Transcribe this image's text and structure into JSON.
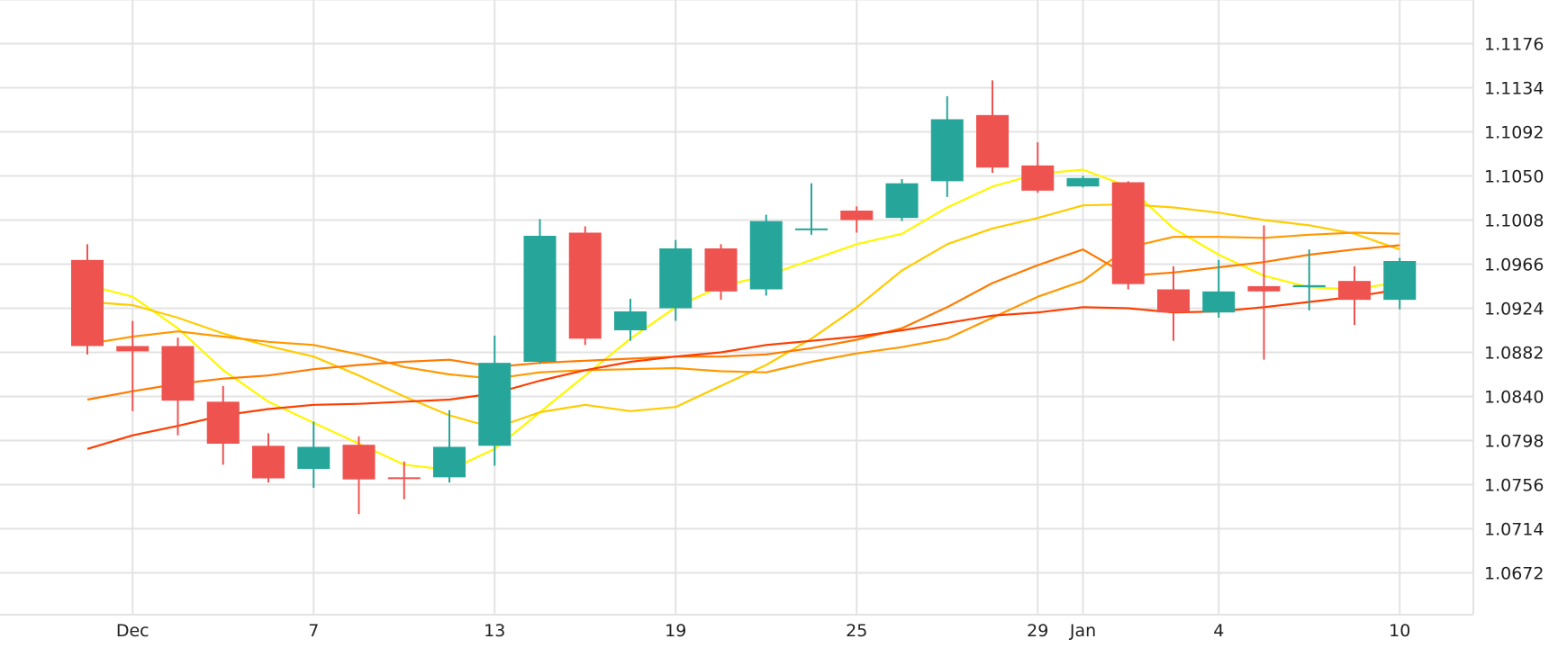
{
  "chart_data": {
    "type": "candlestick",
    "title": "",
    "xlabel": "",
    "ylabel": "",
    "ylim": [
      1.063,
      1.1218
    ],
    "grid": true,
    "y_ticks": [
      "1.1176",
      "1.1134",
      "1.1092",
      "1.1050",
      "1.1008",
      "1.0966",
      "1.0924",
      "1.0882",
      "1.0840",
      "1.0798",
      "1.0756",
      "1.0714",
      "1.0672"
    ],
    "x_ticks": [
      {
        "label": "Dec",
        "index": 1
      },
      {
        "label": "7",
        "index": 5
      },
      {
        "label": "13",
        "index": 9
      },
      {
        "label": "19",
        "index": 13
      },
      {
        "label": "25",
        "index": 17
      },
      {
        "label": "29",
        "index": 21
      },
      {
        "label": "Jan",
        "index": 22
      },
      {
        "label": "4",
        "index": 25
      },
      {
        "label": "10",
        "index": 29
      }
    ],
    "colors": {
      "up": "#26a69a",
      "down": "#ef5350",
      "grid": "#e3e3e3",
      "text": "#1f1f1f"
    },
    "candles": [
      {
        "o": 1.097,
        "h": 1.0985,
        "l": 1.088,
        "c": 1.0888
      },
      {
        "o": 1.0888,
        "h": 1.0912,
        "l": 1.0826,
        "c": 1.0883
      },
      {
        "o": 1.0888,
        "h": 1.0896,
        "l": 1.0803,
        "c": 1.0836
      },
      {
        "o": 1.0835,
        "h": 1.085,
        "l": 1.0775,
        "c": 1.0795
      },
      {
        "o": 1.0793,
        "h": 1.0805,
        "l": 1.0758,
        "c": 1.0762
      },
      {
        "o": 1.0771,
        "h": 1.0816,
        "l": 1.0753,
        "c": 1.0792
      },
      {
        "o": 1.0794,
        "h": 1.0802,
        "l": 1.0728,
        "c": 1.0761
      },
      {
        "o": 1.0763,
        "h": 1.0778,
        "l": 1.0742,
        "c": 1.0762
      },
      {
        "o": 1.0763,
        "h": 1.0827,
        "l": 1.0758,
        "c": 1.0792
      },
      {
        "o": 1.0793,
        "h": 1.0898,
        "l": 1.0774,
        "c": 1.0872
      },
      {
        "o": 1.0873,
        "h": 1.1009,
        "l": 1.0871,
        "c": 1.0993
      },
      {
        "o": 1.0996,
        "h": 1.1002,
        "l": 1.0889,
        "c": 1.0895
      },
      {
        "o": 1.0903,
        "h": 1.0933,
        "l": 1.0893,
        "c": 1.0921
      },
      {
        "o": 1.0924,
        "h": 1.0989,
        "l": 1.0912,
        "c": 1.0981
      },
      {
        "o": 1.0981,
        "h": 1.0985,
        "l": 1.0932,
        "c": 1.094
      },
      {
        "o": 1.0942,
        "h": 1.1013,
        "l": 1.0936,
        "c": 1.1007
      },
      {
        "o": 1.1,
        "h": 1.1043,
        "l": 1.0994,
        "c": 1.1
      },
      {
        "o": 1.1017,
        "h": 1.1021,
        "l": 1.0996,
        "c": 1.1008
      },
      {
        "o": 1.101,
        "h": 1.1047,
        "l": 1.1007,
        "c": 1.1043
      },
      {
        "o": 1.1045,
        "h": 1.1126,
        "l": 1.103,
        "c": 1.1104
      },
      {
        "o": 1.1108,
        "h": 1.1141,
        "l": 1.1053,
        "c": 1.1058
      },
      {
        "o": 1.106,
        "h": 1.1082,
        "l": 1.1034,
        "c": 1.1036
      },
      {
        "o": 1.104,
        "h": 1.105,
        "l": 1.1039,
        "c": 1.1048
      },
      {
        "o": 1.1044,
        "h": 1.1045,
        "l": 1.0942,
        "c": 1.0947
      },
      {
        "o": 1.0942,
        "h": 1.0964,
        "l": 1.0893,
        "c": 1.092
      },
      {
        "o": 1.092,
        "h": 1.097,
        "l": 1.0915,
        "c": 1.094
      },
      {
        "o": 1.0945,
        "h": 1.1003,
        "l": 1.0875,
        "c": 1.094
      },
      {
        "o": 1.0944,
        "h": 1.098,
        "l": 1.0922,
        "c": 1.0946
      },
      {
        "o": 1.095,
        "h": 1.0964,
        "l": 1.0908,
        "c": 1.0932
      },
      {
        "o": 1.0932,
        "h": 1.0972,
        "l": 1.0923,
        "c": 1.0969
      }
    ],
    "moving_averages": [
      {
        "color": "#fff700",
        "values": [
          1.0946,
          1.0935,
          1.0905,
          1.0865,
          1.0835,
          1.0815,
          1.0795,
          1.0775,
          1.077,
          1.079,
          1.0825,
          1.086,
          1.0895,
          1.0925,
          1.0945,
          1.0955,
          1.097,
          1.0985,
          1.0995,
          1.102,
          1.104,
          1.1052,
          1.1056,
          1.104,
          1.1,
          1.0975,
          1.0955,
          1.0944,
          1.0942,
          1.0949
        ]
      },
      {
        "color": "#ffcc00",
        "values": [
          1.093,
          1.0927,
          1.0915,
          1.09,
          1.0888,
          1.0878,
          1.086,
          1.084,
          1.0822,
          1.081,
          1.0825,
          1.0832,
          1.0826,
          1.083,
          1.085,
          1.087,
          1.0895,
          1.0925,
          1.096,
          1.0985,
          1.1,
          1.101,
          1.1022,
          1.1023,
          1.102,
          1.1015,
          1.1008,
          1.1003,
          1.0995,
          1.098
        ]
      },
      {
        "color": "#ff9900",
        "values": [
          1.089,
          1.0897,
          1.0902,
          1.0897,
          1.0892,
          1.0889,
          1.088,
          1.0868,
          1.0861,
          1.0857,
          1.0863,
          1.0865,
          1.0866,
          1.0867,
          1.0864,
          1.0863,
          1.0873,
          1.0881,
          1.0887,
          1.0895,
          1.0915,
          1.0935,
          1.095,
          1.0982,
          1.0992,
          1.0992,
          1.0991,
          1.0994,
          1.0996,
          1.0995
        ]
      },
      {
        "color": "#ff7a00",
        "values": [
          1.0837,
          1.0845,
          1.0852,
          1.0857,
          1.086,
          1.0866,
          1.087,
          1.0873,
          1.0875,
          1.0868,
          1.0872,
          1.0874,
          1.0876,
          1.0878,
          1.0878,
          1.088,
          1.0886,
          1.0894,
          1.0905,
          1.0925,
          1.0948,
          1.0965,
          1.098,
          1.0955,
          1.0958,
          1.0963,
          1.0968,
          1.0975,
          1.098,
          1.0984
        ]
      },
      {
        "color": "#ff3d00",
        "values": [
          1.079,
          1.0803,
          1.0812,
          1.0822,
          1.0828,
          1.0832,
          1.0833,
          1.0835,
          1.0837,
          1.0843,
          1.0855,
          1.0865,
          1.0873,
          1.0878,
          1.0882,
          1.0889,
          1.0893,
          1.0897,
          1.0903,
          1.091,
          1.0917,
          1.092,
          1.0925,
          1.0924,
          1.092,
          1.0921,
          1.0925,
          1.093,
          1.0935,
          1.0942
        ]
      }
    ]
  }
}
